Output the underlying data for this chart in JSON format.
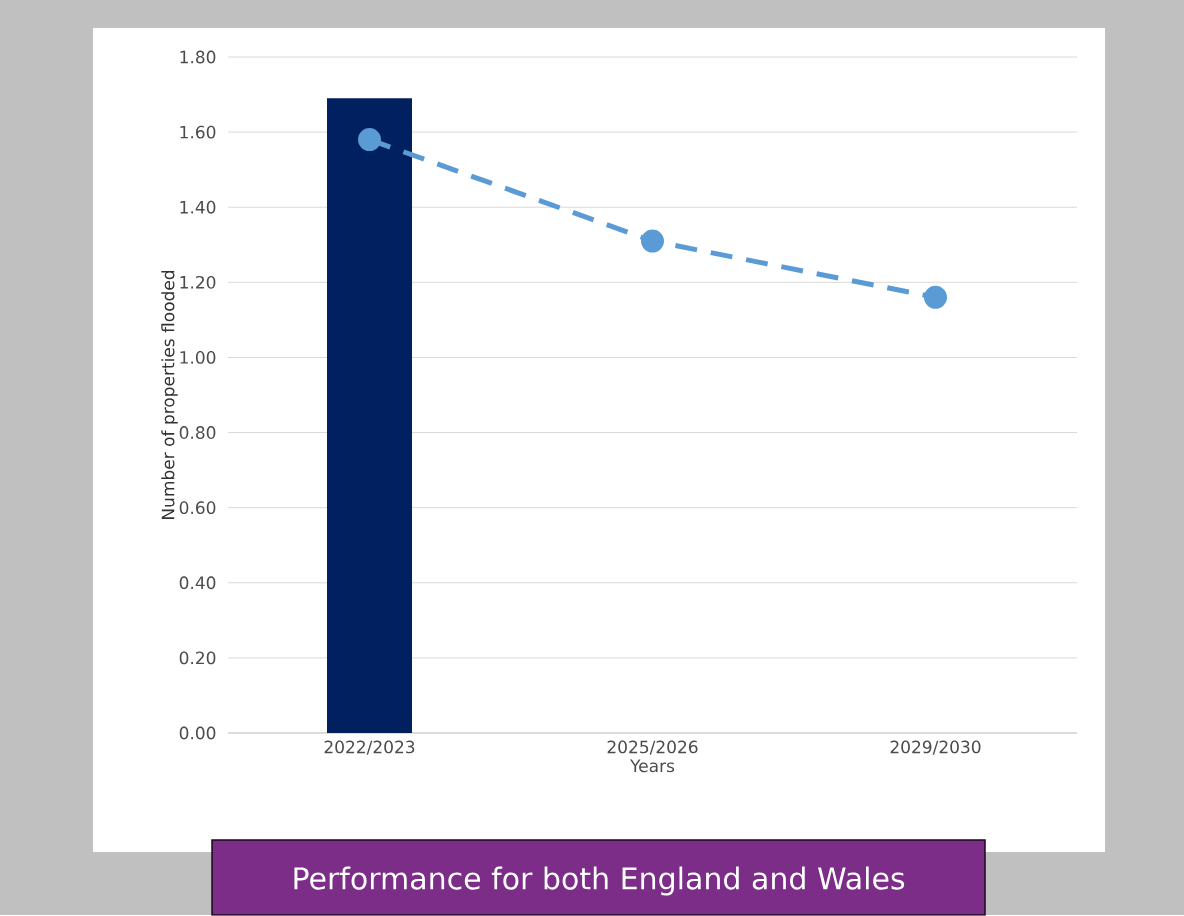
{
  "chart_data": {
    "type": "bar",
    "title": "Performance for both England and Wales",
    "xlabel": "Years",
    "ylabel": "Number of properties flooded",
    "categories": [
      "2022/2023",
      "2025/2026",
      "2029/2030"
    ],
    "series": [
      {
        "color": "#002060",
        "values": [
          1.69,
          null,
          null
        ]
      },
      {
        "type": "line",
        "color": "#5b9bd5",
        "values": [
          1.58,
          1.31,
          1.16
        ],
        "marker": "circle",
        "line_style": "dashed"
      }
    ],
    "ylim": [
      0,
      1.8
    ],
    "yticks": [
      {
        "value": 0,
        "label": "0.00"
      },
      {
        "value": 0.2,
        "label": "0.20"
      },
      {
        "value": 0.4,
        "label": "0.40"
      },
      {
        "value": 0.6,
        "label": "0.60"
      },
      {
        "value": 0.8,
        "label": "0.80"
      },
      {
        "value": 1.0,
        "label": "1.00"
      },
      {
        "value": 1.2,
        "label": "1.20"
      },
      {
        "value": 1.4,
        "label": "1.40"
      },
      {
        "value": 1.6,
        "label": "1.60"
      },
      {
        "value": 1.8,
        "label": "1.80"
      }
    ],
    "grid": "y"
  }
}
